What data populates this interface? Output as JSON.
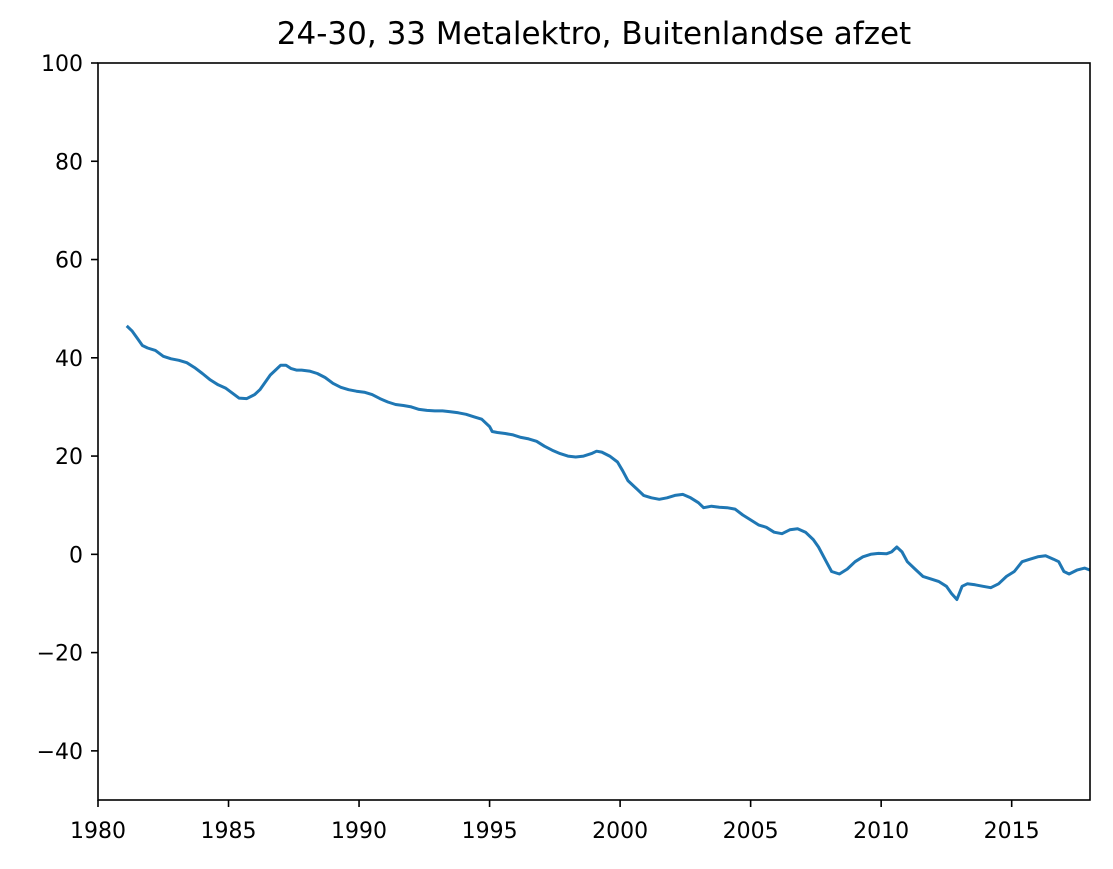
{
  "chart_data": {
    "type": "line",
    "title": "24-30, 33 Metalektro, Buitenlandse afzet",
    "xlabel": "",
    "ylabel": "",
    "xlim": [
      1980,
      2018
    ],
    "ylim": [
      -50,
      100
    ],
    "x_ticks": [
      1980,
      1985,
      1990,
      1995,
      2000,
      2005,
      2010,
      2015
    ],
    "x_tick_labels": [
      "1980",
      "1985",
      "1990",
      "1995",
      "2000",
      "2005",
      "2010",
      "2015"
    ],
    "y_ticks": [
      -40,
      -20,
      0,
      20,
      40,
      60,
      80,
      100
    ],
    "y_tick_labels": [
      "−40",
      "−20",
      "0",
      "20",
      "40",
      "60",
      "80",
      "100"
    ],
    "grid": false,
    "colors": {
      "line": "#1f77b4",
      "axes": "#000000",
      "background": "#ffffff"
    },
    "series": [
      {
        "x": [
          1981.1,
          1981.3,
          1981.5,
          1981.7,
          1981.9,
          1982.2,
          1982.5,
          1982.8,
          1983.1,
          1983.4,
          1983.7,
          1984.0,
          1984.3,
          1984.6,
          1984.9,
          1985.1,
          1985.4,
          1985.7,
          1986.0,
          1986.2,
          1986.4,
          1986.6,
          1986.8,
          1987.0,
          1987.2,
          1987.4,
          1987.6,
          1987.8,
          1988.1,
          1988.4,
          1988.7,
          1989.0,
          1989.3,
          1989.6,
          1989.9,
          1990.2,
          1990.5,
          1990.8,
          1991.1,
          1991.4,
          1991.7,
          1992.0,
          1992.3,
          1992.6,
          1992.9,
          1993.2,
          1993.5,
          1993.8,
          1994.1,
          1994.4,
          1994.7,
          1995.0,
          1995.1,
          1995.3,
          1995.6,
          1995.9,
          1996.2,
          1996.5,
          1996.8,
          1997.1,
          1997.4,
          1997.7,
          1998.0,
          1998.3,
          1998.6,
          1998.9,
          1999.1,
          1999.3,
          1999.6,
          1999.9,
          2000.1,
          2000.3,
          2000.6,
          2000.9,
          2001.2,
          2001.5,
          2001.8,
          2002.1,
          2002.4,
          2002.7,
          2003.0,
          2003.2,
          2003.5,
          2003.8,
          2004.1,
          2004.4,
          2004.7,
          2005.0,
          2005.3,
          2005.6,
          2005.9,
          2006.2,
          2006.5,
          2006.8,
          2007.1,
          2007.4,
          2007.6,
          2007.9,
          2008.1,
          2008.4,
          2008.7,
          2009.0,
          2009.3,
          2009.6,
          2009.9,
          2010.2,
          2010.4,
          2010.6,
          2010.8,
          2011.0,
          2011.3,
          2011.6,
          2011.9,
          2012.2,
          2012.5,
          2012.7,
          2012.9,
          2013.1,
          2013.3,
          2013.6,
          2013.9,
          2014.2,
          2014.5,
          2014.8,
          2015.1,
          2015.4,
          2015.7,
          2016.0,
          2016.3,
          2016.6,
          2016.8,
          2017.0,
          2017.2,
          2017.5,
          2017.8,
          2018.0
        ],
        "y": [
          46.5,
          45.5,
          44.0,
          42.5,
          42.0,
          41.5,
          40.3,
          39.8,
          39.5,
          39.0,
          38.0,
          36.8,
          35.5,
          34.5,
          33.8,
          33.0,
          31.8,
          31.7,
          32.5,
          33.5,
          35.0,
          36.5,
          37.5,
          38.5,
          38.5,
          37.8,
          37.5,
          37.5,
          37.3,
          36.8,
          36.0,
          34.8,
          34.0,
          33.5,
          33.2,
          33.0,
          32.5,
          31.7,
          31.0,
          30.5,
          30.3,
          30.0,
          29.5,
          29.3,
          29.2,
          29.2,
          29.0,
          28.8,
          28.5,
          28.0,
          27.5,
          26.0,
          25.0,
          24.8,
          24.6,
          24.3,
          23.8,
          23.5,
          23.0,
          22.0,
          21.2,
          20.5,
          20.0,
          19.8,
          20.0,
          20.5,
          21.0,
          20.8,
          20.0,
          18.8,
          17.0,
          15.0,
          13.5,
          12.0,
          11.5,
          11.2,
          11.5,
          12.0,
          12.2,
          11.5,
          10.5,
          9.5,
          9.8,
          9.6,
          9.5,
          9.2,
          8.0,
          7.0,
          6.0,
          5.5,
          4.5,
          4.2,
          5.0,
          5.2,
          4.5,
          3.0,
          1.5,
          -1.5,
          -3.5,
          -4.0,
          -3.0,
          -1.5,
          -0.5,
          0.0,
          0.2,
          0.1,
          0.5,
          1.5,
          0.5,
          -1.5,
          -3.0,
          -4.5,
          -5.0,
          -5.5,
          -6.5,
          -8.0,
          -9.2,
          -6.5,
          -6.0,
          -6.2,
          -6.5,
          -6.8,
          -6.0,
          -4.5,
          -3.5,
          -1.5,
          -1.0,
          -0.5,
          -0.3,
          -1.0,
          -1.5,
          -3.5,
          -4.0,
          -3.2,
          -2.8,
          -3.2
        ]
      }
    ]
  }
}
